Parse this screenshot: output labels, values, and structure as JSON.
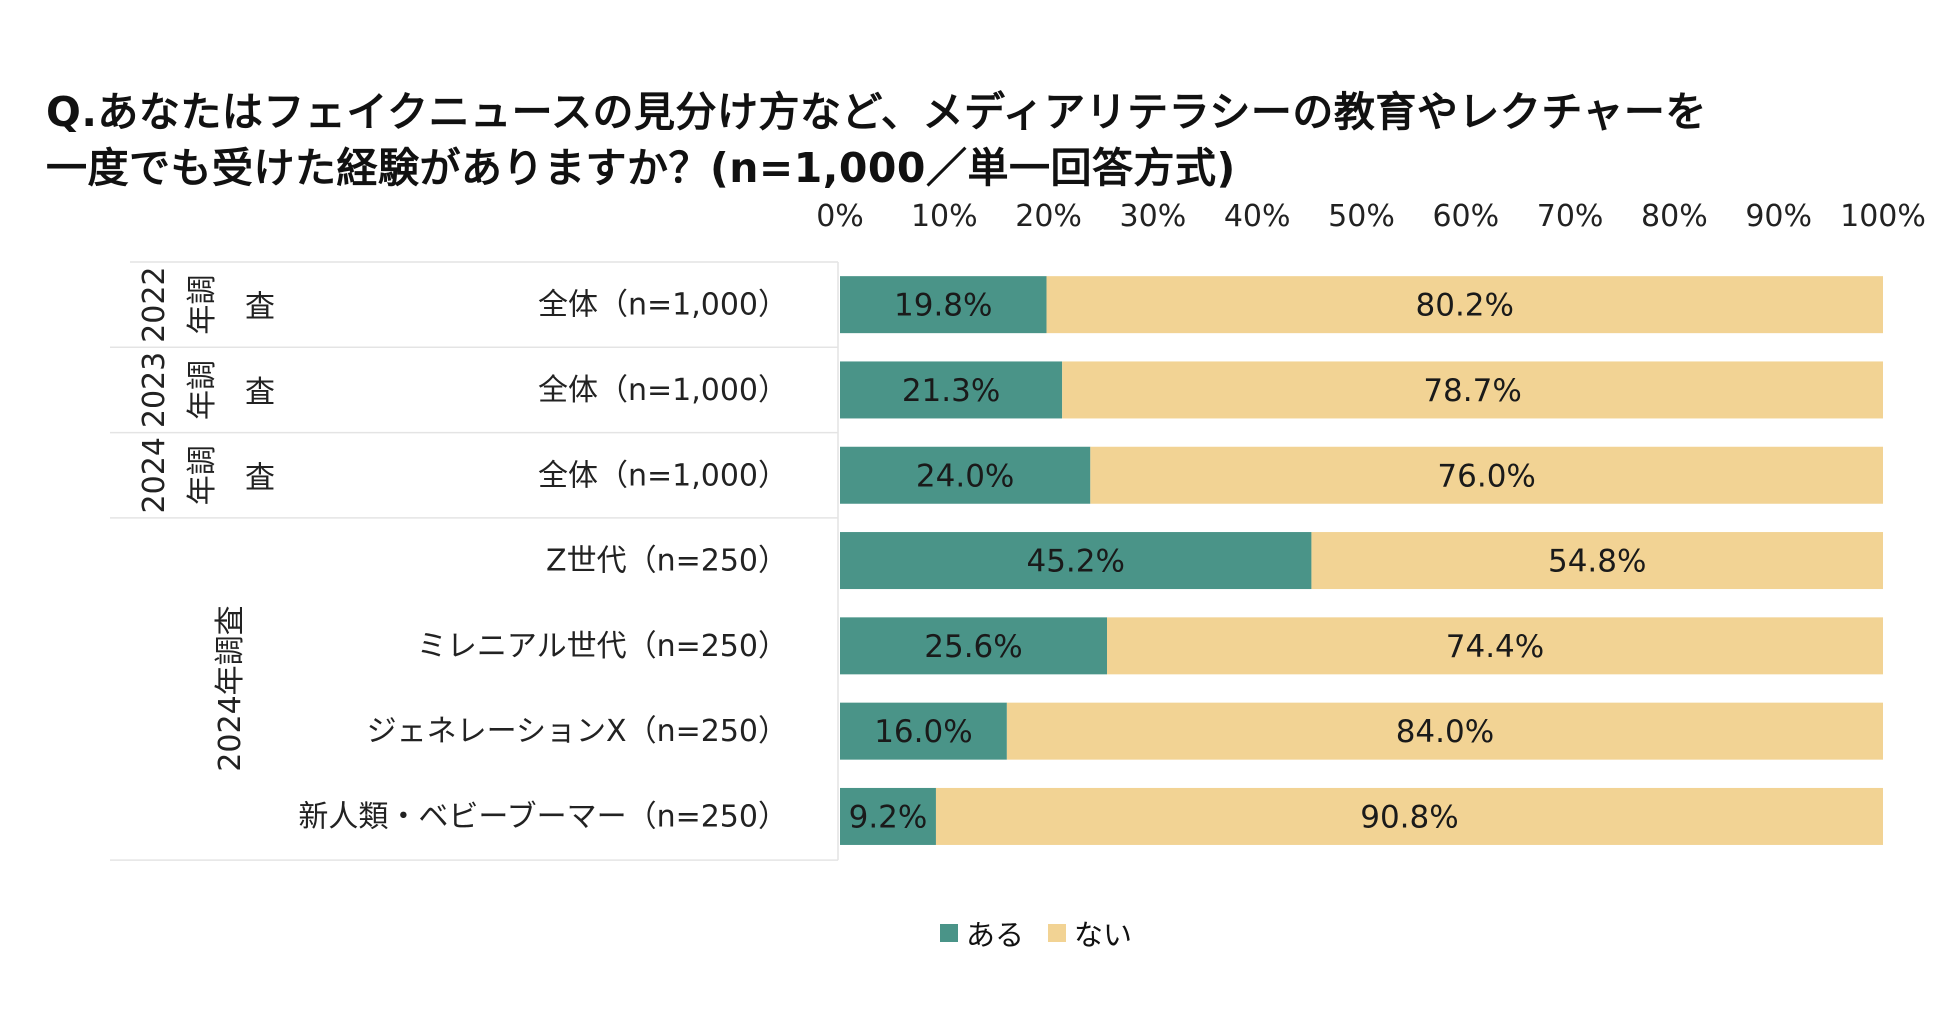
{
  "colors": {
    "aru": "#4a9488",
    "nai": "#f2d394",
    "grid": "#e4e4e4"
  },
  "chart_data": {
    "type": "bar",
    "orientation": "horizontal-stacked-100",
    "title_lines": [
      "Q.あなたはフェイクニュースの見分け方など、メディアリテラシーの教育やレクチャーを",
      "一度でも受けた経験がありますか？(n=1,000／単一回答方式)"
    ],
    "x_ticks": [
      "0%",
      "10%",
      "20%",
      "30%",
      "40%",
      "50%",
      "60%",
      "70%",
      "80%",
      "90%",
      "100%"
    ],
    "xlim": [
      0,
      100
    ],
    "groups": [
      {
        "year": "2022",
        "label": "年調査",
        "rows": [
          0
        ]
      },
      {
        "year": "2023",
        "label": "年調査",
        "rows": [
          1
        ]
      },
      {
        "year": "2024",
        "label": "年調査",
        "rows": [
          2
        ]
      },
      {
        "year": "",
        "label": "2024年調査",
        "rows": [
          3,
          4,
          5,
          6
        ]
      }
    ],
    "categories": [
      "全体（n=1,000）",
      "全体（n=1,000）",
      "全体（n=1,000）",
      "Z世代（n=250）",
      "ミレニアル世代（n=250）",
      "ジェネレーションX（n=250）",
      "新人類・ベビーブーマー（n=250）"
    ],
    "series": [
      {
        "name": "ある",
        "values": [
          19.8,
          21.3,
          24.0,
          45.2,
          25.6,
          16.0,
          9.2
        ],
        "labels": [
          "19.8%",
          "21.3%",
          "24.0%",
          "45.2%",
          "25.6%",
          "16.0%",
          "9.2%"
        ]
      },
      {
        "name": "ない",
        "values": [
          80.2,
          78.7,
          76.0,
          54.8,
          74.4,
          84.0,
          90.8
        ],
        "labels": [
          "80.2%",
          "78.7%",
          "76.0%",
          "54.8%",
          "74.4%",
          "84.0%",
          "90.8%"
        ]
      }
    ],
    "legend": {
      "position": "bottom-center",
      "items": [
        "ある",
        "ない"
      ]
    }
  }
}
